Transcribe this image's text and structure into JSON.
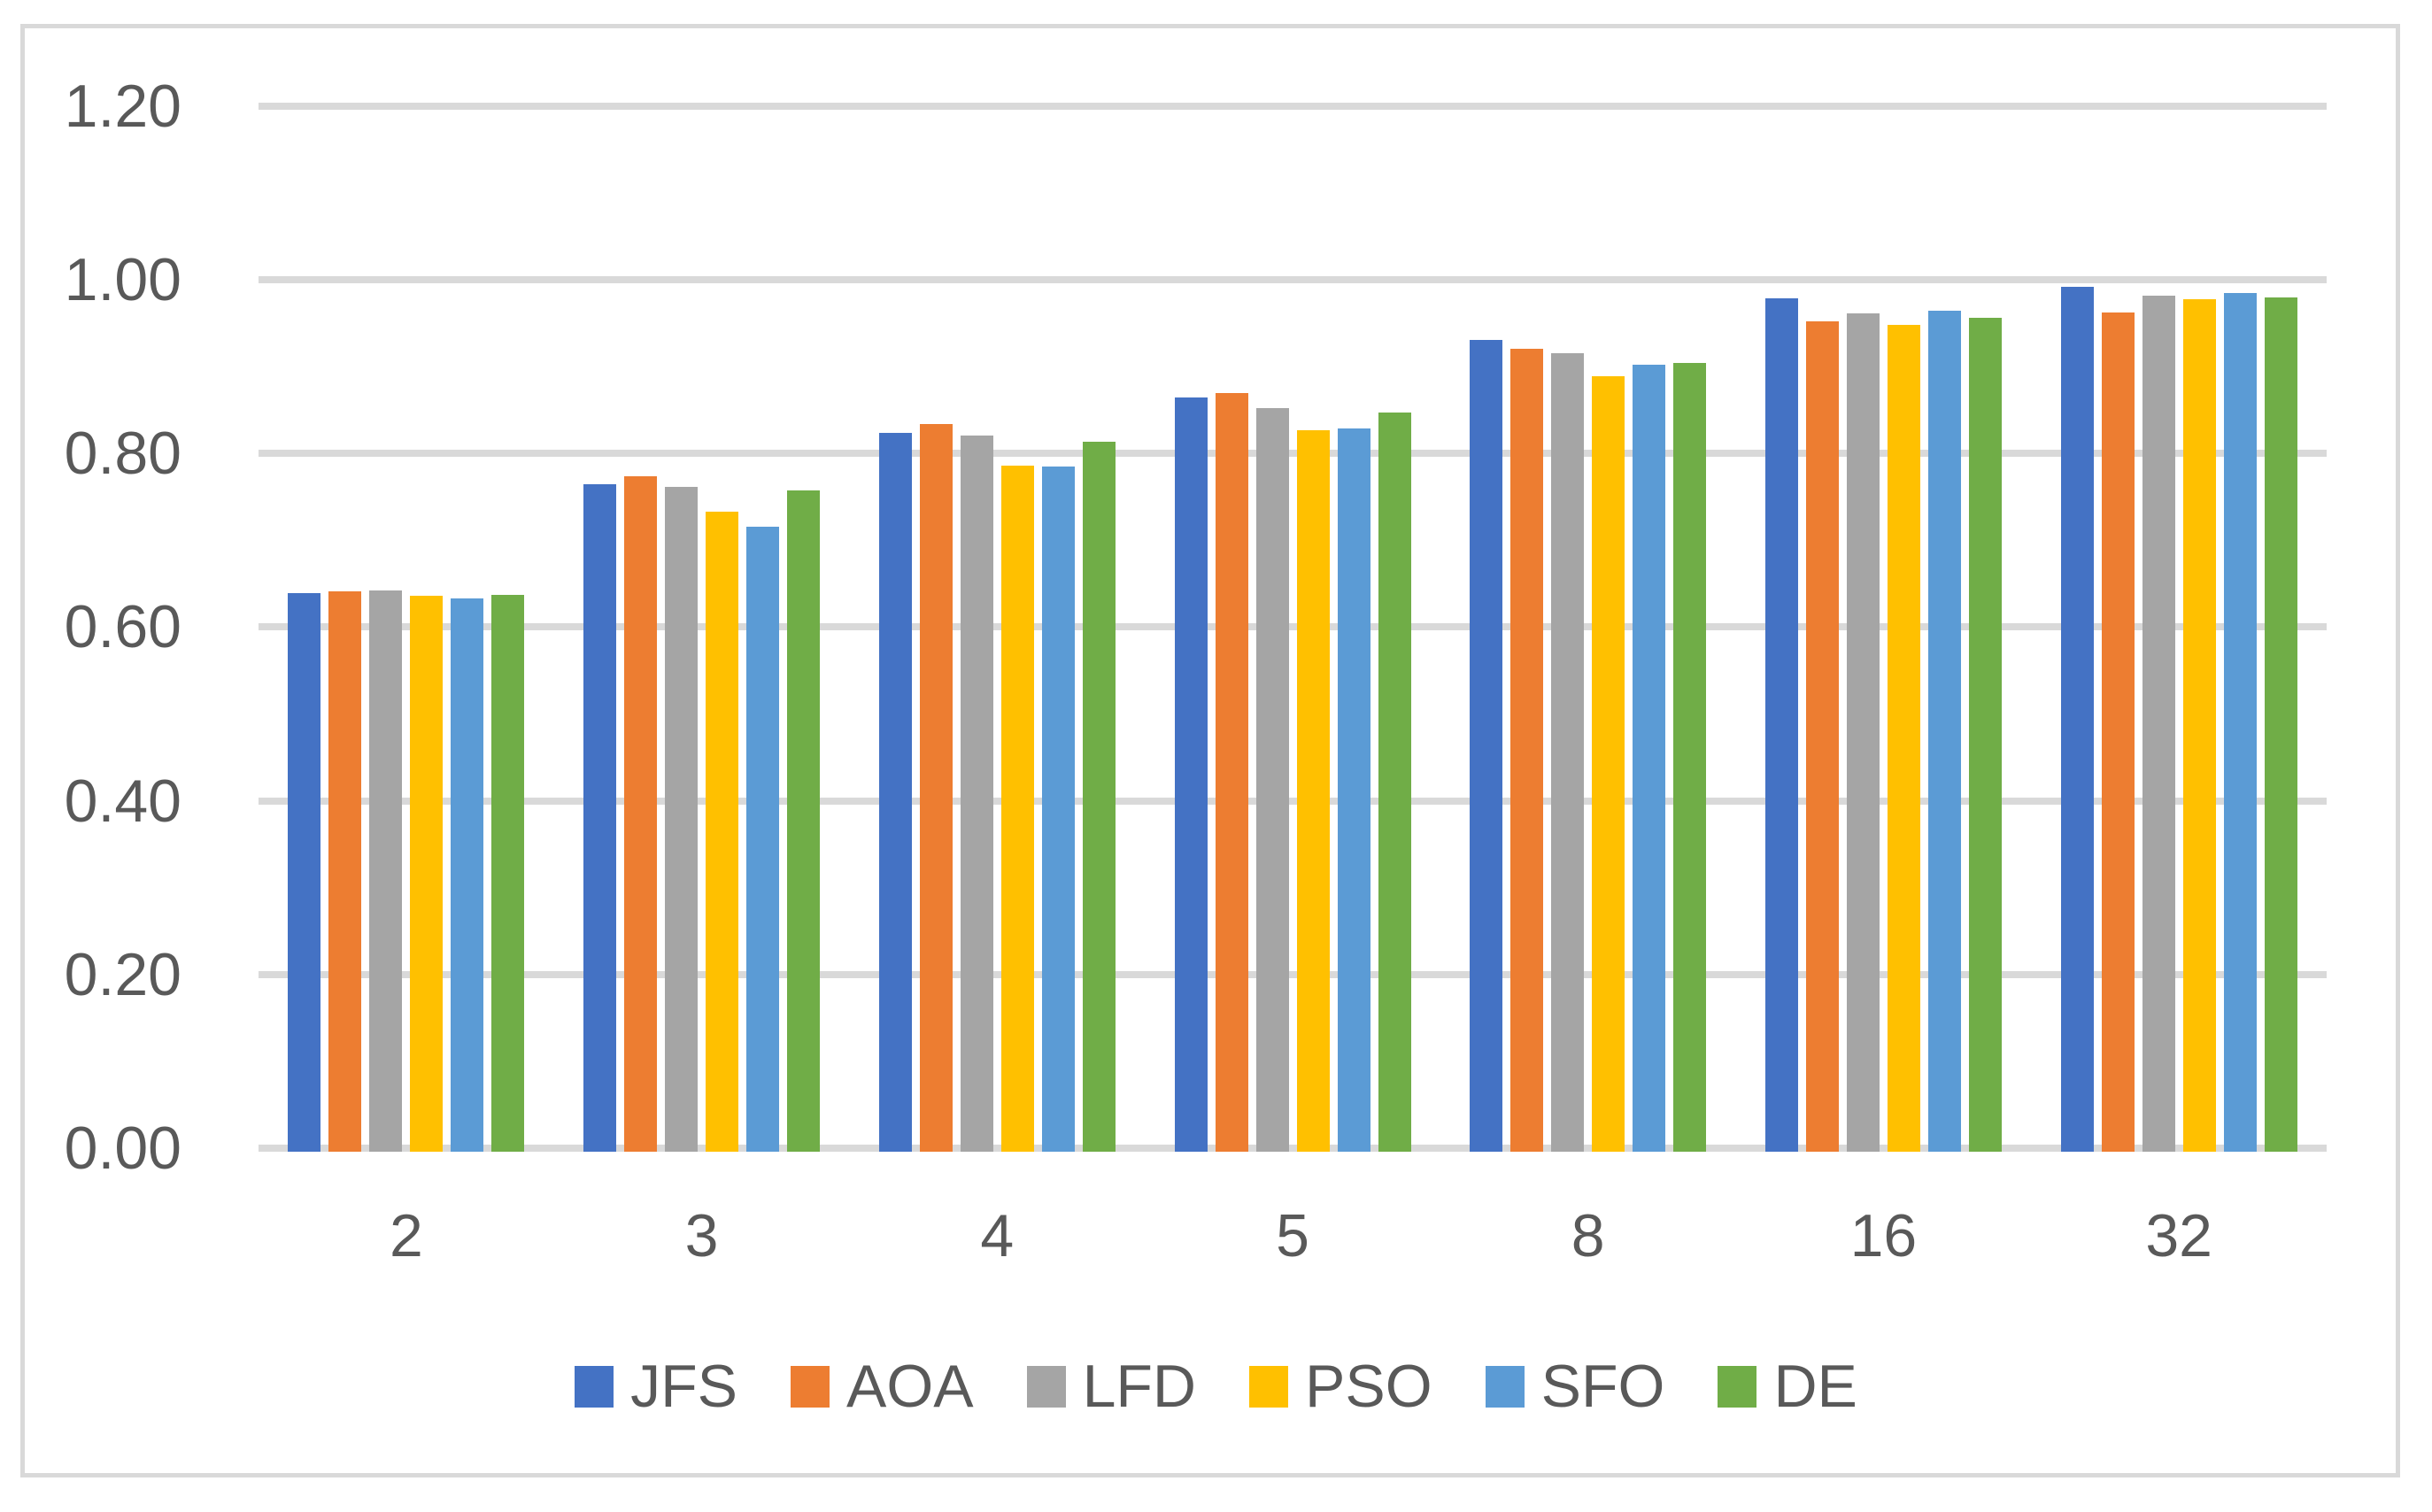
{
  "figure": {
    "background_color": "#FFFFFF",
    "frame_border_color": "#D9D9D9",
    "gridline_color": "#D9D9D9",
    "axis_line_color": "#D9D9D9",
    "text_color": "#595959"
  },
  "chart_data": {
    "type": "bar",
    "title": "",
    "xlabel": "",
    "ylabel": "",
    "categories": [
      "2",
      "3",
      "4",
      "5",
      "8",
      "16",
      "32"
    ],
    "series": [
      {
        "name": "JFS",
        "color": "#4472C4",
        "values": [
          0.643,
          0.769,
          0.828,
          0.868,
          0.935,
          0.983,
          0.996
        ]
      },
      {
        "name": "AOA",
        "color": "#ED7D31",
        "values": [
          0.645,
          0.778,
          0.838,
          0.874,
          0.925,
          0.956,
          0.966
        ]
      },
      {
        "name": "LFD",
        "color": "#A5A5A5",
        "values": [
          0.646,
          0.766,
          0.825,
          0.856,
          0.919,
          0.965,
          0.986
        ]
      },
      {
        "name": "PSO",
        "color": "#FFC000",
        "values": [
          0.64,
          0.737,
          0.79,
          0.831,
          0.893,
          0.952,
          0.982
        ]
      },
      {
        "name": "SFO",
        "color": "#5B9BD5",
        "values": [
          0.637,
          0.72,
          0.789,
          0.833,
          0.906,
          0.968,
          0.989
        ]
      },
      {
        "name": "DE",
        "color": "#70AD47",
        "values": [
          0.641,
          0.761,
          0.818,
          0.851,
          0.908,
          0.96,
          0.984
        ]
      }
    ],
    "y_axis": {
      "min": 0.0,
      "max": 1.2,
      "step": 0.2,
      "tick_labels": [
        "0.00",
        "0.20",
        "0.40",
        "0.60",
        "0.80",
        "1.00",
        "1.20"
      ]
    },
    "grid": "horizontal",
    "legend_position": "bottom"
  }
}
